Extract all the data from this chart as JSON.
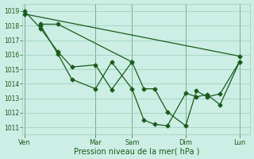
{
  "xlabel": "Pression niveau de la mer( hPa )",
  "bg_color": "#cceee4",
  "grid_color": "#99ccbb",
  "line_color": "#1a5c1a",
  "marker_color": "#1a5c1a",
  "ylim": [
    1010.5,
    1019.5
  ],
  "yticks": [
    1011,
    1012,
    1013,
    1014,
    1015,
    1016,
    1017,
    1018,
    1019
  ],
  "day_labels": [
    "Ven",
    "Mar",
    "Sam",
    "Dim",
    "Lun"
  ],
  "day_positions": [
    0.0,
    0.33,
    0.5,
    0.75,
    1.0
  ],
  "vline_color": "#336633",
  "series": [
    {
      "x": [
        0.0,
        0.075,
        0.155,
        0.22,
        0.33,
        0.405,
        0.5,
        0.555,
        0.605,
        0.665,
        0.75,
        0.8,
        0.85,
        0.91,
        1.0
      ],
      "y": [
        1019.0,
        1017.8,
        1016.2,
        1015.15,
        1015.3,
        1013.6,
        1015.5,
        1013.65,
        1013.65,
        1012.05,
        1011.1,
        1013.5,
        1013.1,
        1013.3,
        1015.5
      ]
    },
    {
      "x": [
        0.075,
        0.155,
        0.22,
        0.33,
        0.405,
        0.5,
        0.555,
        0.605,
        0.665,
        0.75,
        0.8,
        0.85,
        0.91,
        1.0
      ],
      "y": [
        1018.0,
        1016.05,
        1014.3,
        1013.65,
        1015.5,
        1013.65,
        1011.5,
        1011.2,
        1011.1,
        1013.35,
        1013.1,
        1013.25,
        1012.55,
        1015.5
      ]
    },
    {
      "x": [
        0.0,
        1.0
      ],
      "y": [
        1018.8,
        1015.9
      ]
    },
    {
      "x": [
        0.075,
        0.155,
        0.5
      ],
      "y": [
        1018.1,
        1018.1,
        1015.5
      ]
    }
  ]
}
